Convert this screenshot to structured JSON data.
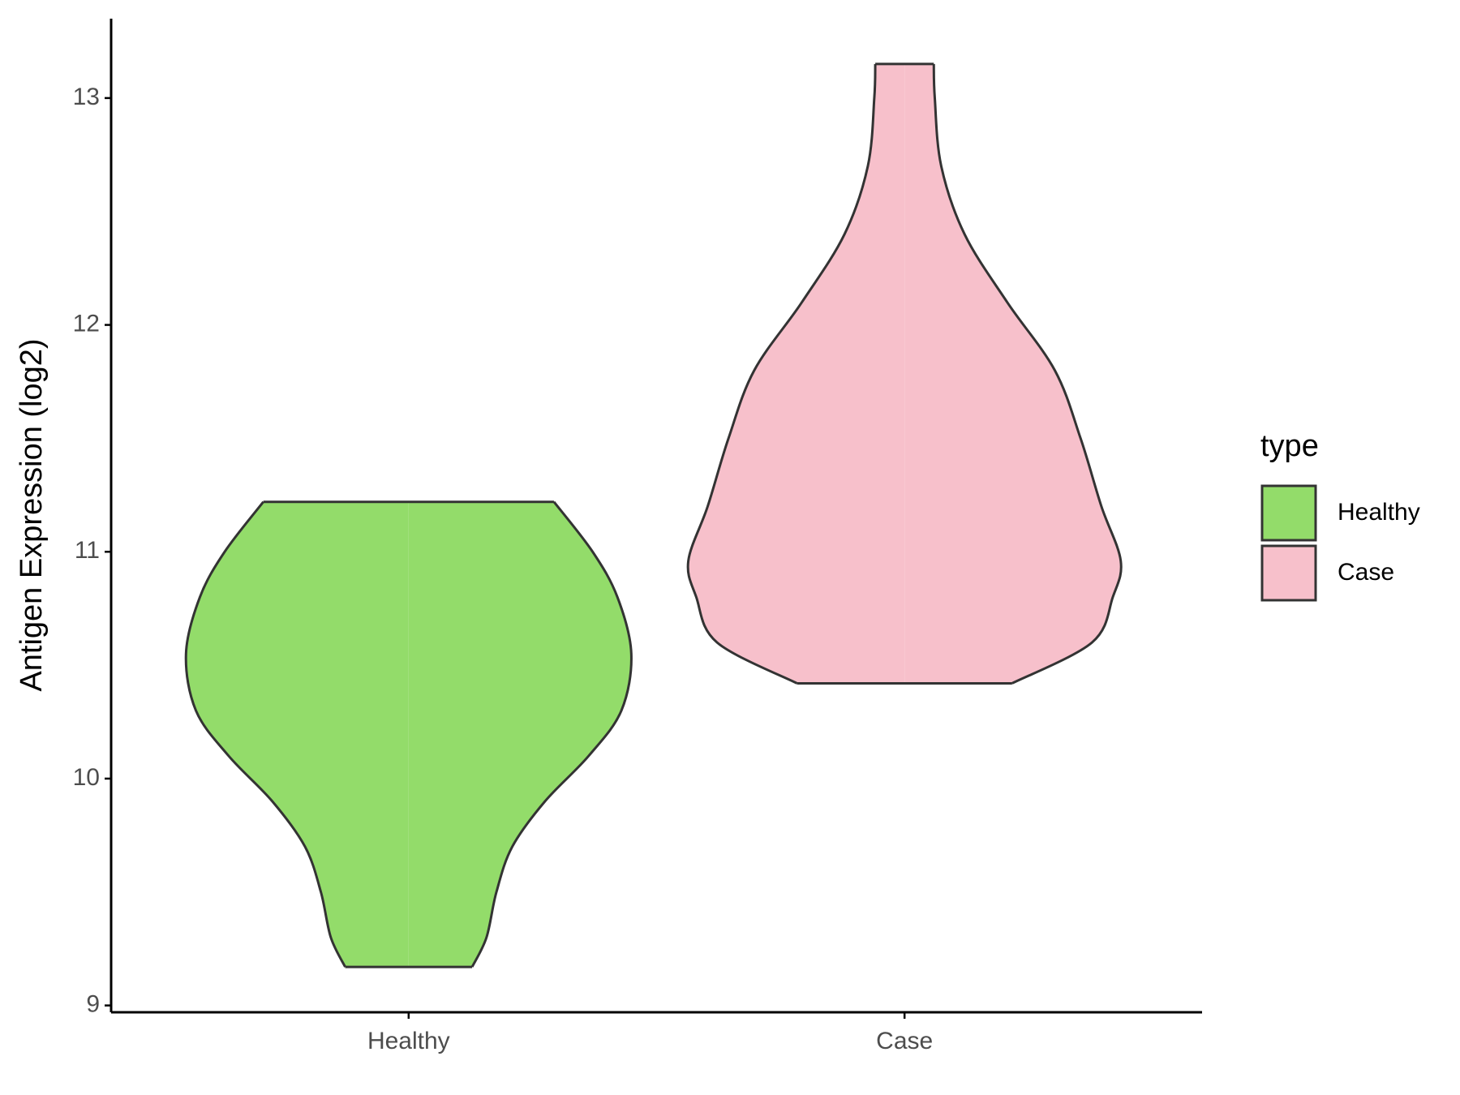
{
  "chart_data": {
    "type": "violin",
    "y_label": "Antigen Expression (log2)",
    "categories": [
      "Healthy",
      "Case"
    ],
    "ylim": [
      8.97,
      13.35
    ],
    "yticks": [
      9,
      10,
      11,
      12,
      13
    ],
    "legend_title": "type",
    "legend_position": "right",
    "series": [
      {
        "name": "Healthy",
        "color": "#93dc6a",
        "y": [
          9.17,
          9.3,
          9.5,
          9.7,
          9.9,
          10.1,
          10.3,
          10.55,
          10.8,
          11.0,
          11.22
        ],
        "widths": [
          0.128,
          0.157,
          0.177,
          0.209,
          0.275,
          0.363,
          0.429,
          0.449,
          0.421,
          0.371,
          0.293
        ]
      },
      {
        "name": "Case",
        "color": "#f7c0cb",
        "y": [
          10.42,
          10.6,
          10.8,
          10.96,
          11.2,
          11.5,
          11.8,
          12.1,
          12.4,
          12.7,
          13.0,
          13.15
        ],
        "widths": [
          0.217,
          0.378,
          0.42,
          0.436,
          0.397,
          0.355,
          0.303,
          0.207,
          0.121,
          0.074,
          0.061,
          0.059
        ]
      }
    ]
  }
}
